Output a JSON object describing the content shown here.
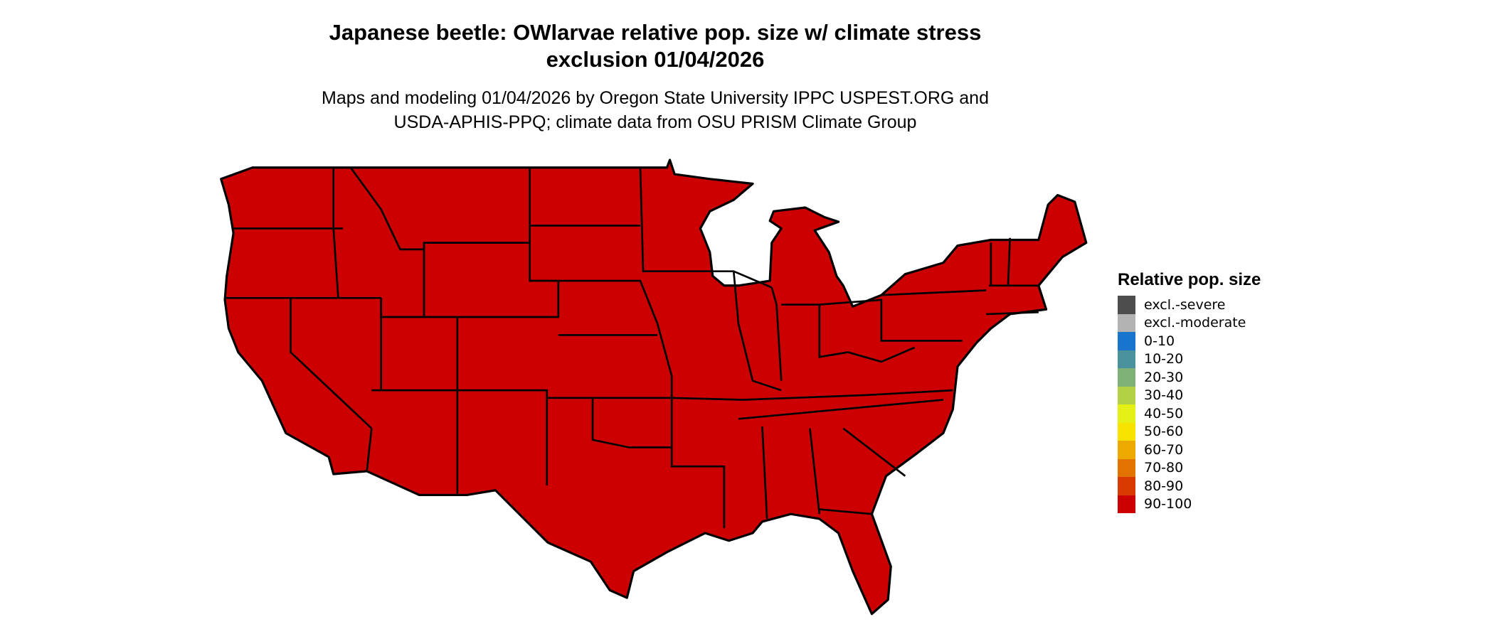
{
  "title": {
    "line1": "Japanese beetle: OWlarvae relative pop. size w/ climate stress",
    "line2": "exclusion 01/04/2026"
  },
  "subtitle": {
    "line1": "Maps and modeling 01/04/2026 by Oregon State University IPPC USPEST.ORG and",
    "line2": "USDA-APHIS-PPQ; climate data from OSU PRISM Climate Group"
  },
  "map": {
    "region": "Contiguous United States",
    "fill_class": "90-100",
    "fill_color": "#CC0000",
    "border_color": "#000000"
  },
  "legend": {
    "title": "Relative pop. size",
    "items": [
      {
        "label": "excl.-severe",
        "color": "#4D4D4D"
      },
      {
        "label": "excl.-moderate",
        "color": "#B3B3B3"
      },
      {
        "label": "0-10",
        "color": "#1874CD"
      },
      {
        "label": "10-20",
        "color": "#4A919E"
      },
      {
        "label": "20-30",
        "color": "#7FB077"
      },
      {
        "label": "30-40",
        "color": "#B3D147"
      },
      {
        "label": "40-50",
        "color": "#E5F017"
      },
      {
        "label": "50-60",
        "color": "#F8E200"
      },
      {
        "label": "60-70",
        "color": "#EEA900"
      },
      {
        "label": "70-80",
        "color": "#E37300"
      },
      {
        "label": "80-90",
        "color": "#D83A00"
      },
      {
        "label": "90-100",
        "color": "#CC0000"
      }
    ]
  }
}
